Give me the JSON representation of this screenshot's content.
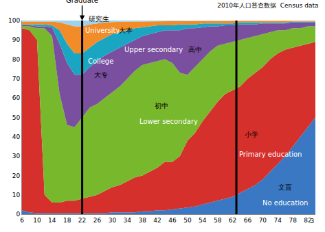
{
  "chart_data": {
    "type": "area",
    "title": "2010年人口普查数据  Census data",
    "stacked": true,
    "grid": false,
    "x": [
      6,
      8,
      10,
      12,
      14,
      16,
      18,
      20,
      22,
      24,
      26,
      28,
      30,
      32,
      34,
      36,
      38,
      40,
      42,
      44,
      46,
      48,
      50,
      52,
      54,
      56,
      58,
      60,
      62,
      64,
      66,
      68,
      70,
      72,
      74,
      76,
      78,
      80,
      82,
      84
    ],
    "xlim": [
      6,
      84
    ],
    "xticks": [
      6,
      10,
      14,
      18,
      22,
      26,
      30,
      34,
      38,
      42,
      46,
      50,
      54,
      58,
      62,
      66,
      70,
      74,
      78,
      82
    ],
    "ylim": [
      0,
      100
    ],
    "yticks": [
      0,
      10,
      20,
      30,
      40,
      50,
      60,
      70,
      80,
      90,
      100
    ],
    "vlines": [
      22,
      63
    ],
    "series": [
      {
        "name": "No education",
        "color": "#3a78c3",
        "values": [
          2,
          1,
          0.5,
          0.5,
          0.5,
          0.5,
          0.5,
          0.5,
          0.5,
          0.5,
          0.5,
          0.5,
          1,
          1,
          1,
          1,
          1.5,
          1.5,
          2,
          2,
          2.5,
          3,
          3.5,
          4,
          5,
          6,
          7,
          8,
          9,
          11,
          13,
          15,
          18,
          22,
          26,
          30,
          35,
          40,
          45,
          50
        ]
      },
      {
        "name": "Primary education",
        "color": "#d5302b",
        "values": [
          94,
          94,
          89.5,
          9.5,
          5.5,
          5.5,
          6.5,
          6.5,
          7.5,
          8.5,
          9.5,
          11.5,
          13,
          14,
          16,
          18,
          18.5,
          20.5,
          22,
          25,
          24.5,
          27,
          34.5,
          38,
          43,
          47,
          51,
          54,
          55,
          55,
          57,
          58,
          58,
          58,
          57,
          55,
          51,
          47,
          43,
          39
        ]
      },
      {
        "name": "Lower secondary",
        "color": "#78b82c",
        "values": [
          1,
          2,
          6,
          86,
          86,
          56,
          39,
          38,
          42,
          46,
          47,
          48,
          49,
          51,
          53,
          55,
          57,
          56,
          55,
          53,
          51,
          43,
          34,
          34,
          32,
          31,
          29,
          26,
          25,
          24,
          21,
          19,
          17,
          14,
          12,
          10,
          10,
          9,
          9,
          8
        ]
      },
      {
        "name": "Upper secondary",
        "color": "#7a4f9f",
        "values": [
          0.5,
          0.5,
          1,
          1,
          4.5,
          26,
          32,
          27,
          22,
          21,
          22,
          22,
          21,
          20,
          18,
          16,
          15,
          15,
          15,
          15,
          17,
          22,
          24,
          20,
          16.5,
          13,
          10,
          9.5,
          8.5,
          8,
          7,
          6,
          5.5,
          4.5,
          3.5,
          3.5,
          3,
          3,
          2,
          2
        ]
      },
      {
        "name": "College",
        "color": "#1aa6c3",
        "values": [
          0.5,
          0.5,
          1,
          1,
          1,
          7,
          10,
          11,
          11,
          10,
          10,
          9,
          9,
          8,
          7,
          6,
          4.5,
          4,
          3.5,
          2.5,
          2.5,
          3,
          2,
          2,
          2,
          1.5,
          1.5,
          1,
          1,
          1,
          1,
          1,
          0.5,
          0.5,
          0.5,
          0.5,
          0.5,
          0.5,
          0.5,
          0.5
        ]
      },
      {
        "name": "University",
        "color": "#f28c28",
        "values": [
          1.5,
          1.5,
          1.5,
          1.5,
          2,
          4,
          10,
          14,
          14,
          12,
          9.5,
          8,
          6.2,
          5.4,
          4.5,
          3.5,
          3,
          2.6,
          2.1,
          2.1,
          2.2,
          1.7,
          1.7,
          1.8,
          1.3,
          1.3,
          1.3,
          1.3,
          1.3,
          0.9,
          0.9,
          0.9,
          0.9,
          0.9,
          0.9,
          0.9,
          0.4,
          0.4,
          0.4,
          0.4
        ]
      },
      {
        "name": "Graduate",
        "color": "#9fd2e8",
        "values": [
          0.5,
          0.5,
          0.5,
          0.5,
          0.5,
          1,
          2,
          3,
          3,
          2,
          1.5,
          1,
          0.8,
          0.6,
          0.5,
          0.5,
          0.5,
          0.4,
          0.4,
          0.4,
          0.3,
          0.3,
          0.3,
          0.2,
          0.2,
          0.2,
          0.2,
          0.2,
          0.2,
          0.1,
          0.1,
          0.1,
          0.1,
          0.1,
          0.1,
          0.1,
          0.1,
          0.1,
          0.1,
          0.1
        ]
      }
    ],
    "annotations": [
      "Graduate",
      "研究生",
      "University",
      "大本",
      "College",
      "大专",
      "Upper secondary",
      "高中",
      "初中",
      "Lower secondary",
      "小学",
      "Primary education",
      "文盲",
      "No education",
      "3"
    ]
  }
}
